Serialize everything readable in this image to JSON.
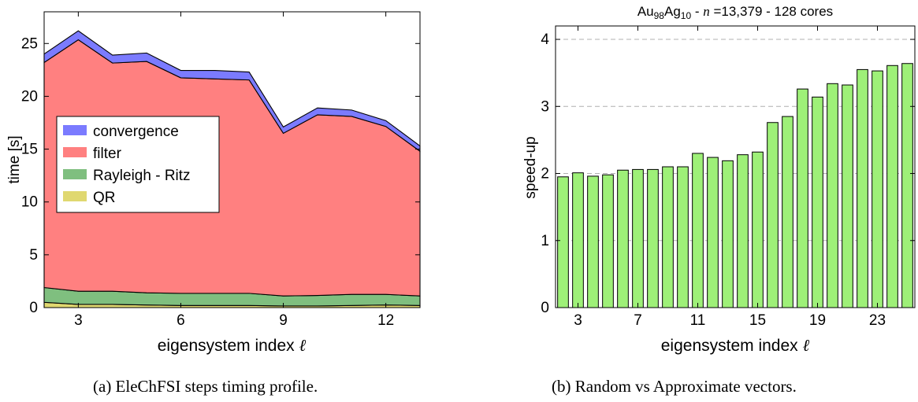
{
  "captions": {
    "a": "(a) EleChFSI steps timing profile.",
    "b": "(b) Random vs Approximate vectors."
  },
  "chart_data": [
    {
      "type": "area",
      "stacked": true,
      "title": "",
      "xlabel": "eigensystem index",
      "xlabel_symbol": "ℓ",
      "ylabel": "time [s]",
      "xlim": [
        2,
        13
      ],
      "ylim": [
        0,
        28
      ],
      "xticks": [
        3,
        6,
        9,
        12
      ],
      "yticks": [
        0,
        5,
        10,
        15,
        20,
        25
      ],
      "grid": false,
      "legend_position": "center-left",
      "x": [
        2,
        3,
        4,
        5,
        6,
        7,
        8,
        9,
        10,
        11,
        12,
        13
      ],
      "series": [
        {
          "name": "QR",
          "color": "#e0d870",
          "values": [
            0.5,
            0.3,
            0.3,
            0.25,
            0.2,
            0.2,
            0.2,
            0.15,
            0.15,
            0.2,
            0.25,
            0.2
          ]
        },
        {
          "name": "Rayleigh - Ritz",
          "color": "#7fbf7f",
          "values": [
            1.4,
            1.25,
            1.25,
            1.15,
            1.15,
            1.15,
            1.15,
            0.95,
            1.0,
            1.05,
            1.0,
            0.9
          ]
        },
        {
          "name": "filter",
          "color": "#ff8080",
          "values": [
            21.3,
            23.8,
            21.6,
            21.9,
            20.4,
            20.3,
            20.2,
            15.4,
            17.1,
            16.85,
            15.9,
            13.7
          ]
        },
        {
          "name": "convergence",
          "color": "#7b7bff",
          "values": [
            0.8,
            0.85,
            0.75,
            0.8,
            0.7,
            0.8,
            0.75,
            0.6,
            0.65,
            0.6,
            0.55,
            0.5
          ]
        }
      ]
    },
    {
      "type": "bar",
      "title_parts": {
        "au": "Au",
        "au_sub": "98",
        "ag": "Ag",
        "ag_sub": "10",
        "sep1": " - ",
        "n": "n",
        "eq": " =13,379",
        "sep2": " - 128 cores"
      },
      "xlabel": "eigensystem index",
      "xlabel_symbol": "ℓ",
      "ylabel": "speed-up",
      "xlim": [
        1.5,
        25.5
      ],
      "ylim": [
        0,
        4.2
      ],
      "xticks": [
        3,
        7,
        11,
        15,
        19,
        23
      ],
      "yticks": [
        0,
        1,
        2,
        3,
        4
      ],
      "grid": "horizontal dashed",
      "bar_color": "#9ef078",
      "categories": [
        2,
        3,
        4,
        5,
        6,
        7,
        8,
        9,
        10,
        11,
        12,
        13,
        14,
        15,
        16,
        17,
        18,
        19,
        20,
        21,
        22,
        23,
        24,
        25
      ],
      "values": [
        1.95,
        2.01,
        1.96,
        1.98,
        2.05,
        2.06,
        2.06,
        2.1,
        2.1,
        2.3,
        2.24,
        2.19,
        2.28,
        2.32,
        2.76,
        2.85,
        3.26,
        3.14,
        3.34,
        3.32,
        3.55,
        3.53,
        3.61,
        3.64
      ]
    }
  ]
}
